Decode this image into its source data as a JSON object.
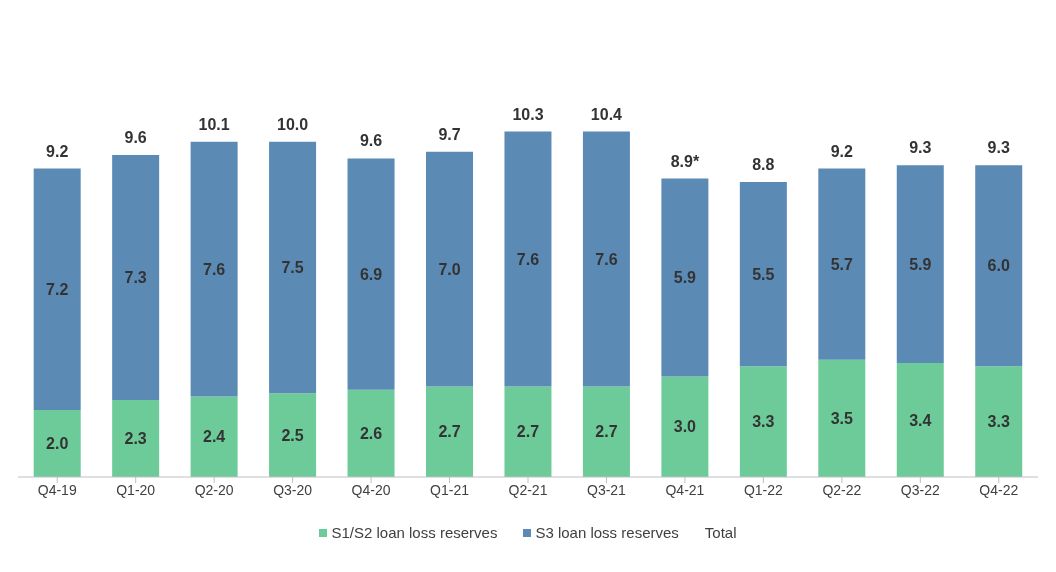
{
  "chart_data": {
    "type": "bar",
    "stacked": true,
    "legend": "bottom",
    "categories": [
      "Q4-19",
      "Q1-20",
      "Q2-20",
      "Q3-20",
      "Q4-20",
      "Q1-21",
      "Q2-21",
      "Q3-21",
      "Q4-21",
      "Q1-22",
      "Q2-22",
      "Q3-22",
      "Q4-22"
    ],
    "series": [
      {
        "name": "S1/S2 loan loss reserves",
        "color": "#6ccb98",
        "values": [
          2.0,
          2.3,
          2.4,
          2.5,
          2.6,
          2.7,
          2.7,
          2.7,
          3.0,
          3.3,
          3.5,
          3.4,
          3.3
        ],
        "value_labels": [
          "2.0",
          "2.3",
          "2.4",
          "2.5",
          "2.6",
          "2.7",
          "2.7",
          "2.7",
          "3.0",
          "3.3",
          "3.5",
          "3.4",
          "3.3"
        ]
      },
      {
        "name": "S3 loan loss reserves",
        "color": "#5b8ab5",
        "values": [
          7.2,
          7.3,
          7.6,
          7.5,
          6.9,
          7.0,
          7.6,
          7.6,
          5.9,
          5.5,
          5.7,
          5.9,
          6.0
        ],
        "value_labels": [
          "7.2",
          "7.3",
          "7.6",
          "7.5",
          "6.9",
          "7.0",
          "7.6",
          "7.6",
          "5.9",
          "5.5",
          "5.7",
          "5.9",
          "6.0"
        ]
      }
    ],
    "totals": [
      "9.2",
      "9.6",
      "10.1",
      "10.0",
      "9.6",
      "9.7",
      "10.3",
      "10.4",
      "8.9*",
      "8.8",
      "9.2",
      "9.3",
      "9.3"
    ],
    "annotations": [
      "Total"
    ]
  }
}
